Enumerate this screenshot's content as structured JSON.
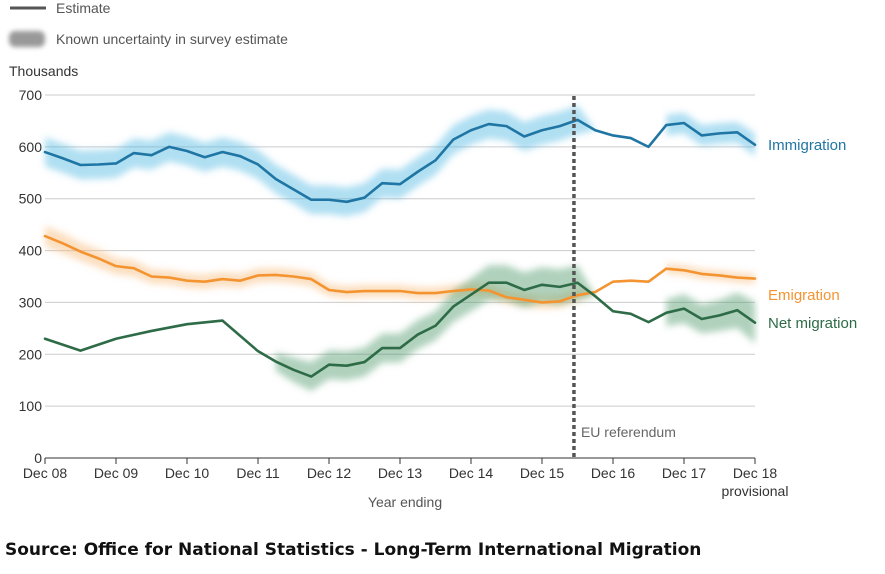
{
  "chart_data": {
    "type": "line",
    "legend": [
      {
        "key": "estimate",
        "label": "Estimate"
      },
      {
        "key": "uncertainty",
        "label": "Known uncertainty in survey estimate"
      }
    ],
    "ylabel": "Thousands",
    "xlabel": "Year ending",
    "ylim": [
      0,
      700
    ],
    "yticks": [
      0,
      100,
      200,
      300,
      400,
      500,
      600,
      700
    ],
    "xlim": [
      0,
      10
    ],
    "xticks": [
      {
        "x": 0,
        "label": "Dec 08"
      },
      {
        "x": 1,
        "label": "Dec 09"
      },
      {
        "x": 2,
        "label": "Dec 10"
      },
      {
        "x": 3,
        "label": "Dec 11"
      },
      {
        "x": 4,
        "label": "Dec 12"
      },
      {
        "x": 5,
        "label": "Dec 13"
      },
      {
        "x": 6,
        "label": "Dec 14"
      },
      {
        "x": 7,
        "label": "Dec 15"
      },
      {
        "x": 8,
        "label": "Dec 16"
      },
      {
        "x": 9,
        "label": "Dec 17"
      },
      {
        "x": 10,
        "label": "Dec 18",
        "sublabel": "provisional"
      }
    ],
    "grid": true,
    "series": [
      {
        "name": "Immigration",
        "color": "#1f75a3",
        "band_color": "#4fb7e3",
        "x": [
          0,
          0.25,
          0.5,
          0.75,
          1,
          1.25,
          1.5,
          1.75,
          2,
          2.25,
          2.5,
          2.75,
          3,
          3.25,
          3.5,
          3.75,
          4,
          4.25,
          4.5,
          4.75,
          5,
          5.25,
          5.5,
          5.75,
          6,
          6.25,
          6.5,
          6.75,
          7,
          7.25,
          7.5,
          7.75,
          8,
          8.25,
          8.5,
          8.75,
          9,
          9.25,
          9.5,
          9.75,
          10
        ],
        "values": [
          590,
          578,
          565,
          566,
          568,
          588,
          584,
          600,
          592,
          580,
          590,
          582,
          566,
          538,
          518,
          498,
          498,
          494,
          502,
          530,
          528,
          552,
          574,
          614,
          632,
          644,
          640,
          620,
          632,
          640,
          652,
          632,
          622,
          617,
          600,
          642,
          646,
          622,
          626,
          628,
          604
        ],
        "uncertainty": [
          28,
          28,
          28,
          28,
          28,
          28,
          28,
          28,
          28,
          28,
          28,
          28,
          28,
          28,
          28,
          28,
          28,
          28,
          28,
          28,
          28,
          28,
          28,
          28,
          28,
          28,
          28,
          28,
          28,
          28,
          28,
          0,
          0,
          0,
          0,
          20,
          20,
          20,
          20,
          20,
          22
        ]
      },
      {
        "name": "Emigration",
        "color": "#f39431",
        "band_color": "#f9b774",
        "x": [
          0,
          0.25,
          0.5,
          0.75,
          1,
          1.25,
          1.5,
          1.75,
          2,
          2.25,
          2.5,
          2.75,
          3,
          3.25,
          3.5,
          3.75,
          4,
          4.25,
          4.5,
          4.75,
          5,
          5.25,
          5.5,
          5.75,
          6,
          6.25,
          6.5,
          6.75,
          7,
          7.25,
          7.5,
          7.75,
          8,
          8.25,
          8.5,
          8.75,
          9,
          9.25,
          9.5,
          9.75,
          10
        ],
        "values": [
          428,
          414,
          398,
          385,
          370,
          366,
          350,
          348,
          342,
          340,
          345,
          342,
          352,
          353,
          350,
          345,
          324,
          320,
          322,
          322,
          322,
          318,
          318,
          322,
          325,
          323,
          310,
          305,
          300,
          302,
          314,
          320,
          340,
          342,
          340,
          365,
          362,
          355,
          352,
          348,
          346
        ],
        "uncertainty": [
          20,
          20,
          18,
          18,
          16,
          16,
          14,
          14,
          14,
          14,
          14,
          14,
          14,
          14,
          14,
          14,
          12,
          12,
          12,
          12,
          12,
          12,
          12,
          12,
          12,
          12,
          12,
          12,
          12,
          12,
          12,
          0,
          0,
          0,
          0,
          10,
          10,
          10,
          10,
          10,
          10
        ]
      },
      {
        "name": "Net migration",
        "color": "#2e6b47",
        "band_color": "#4e9a6b",
        "x": [
          0,
          0.5,
          1,
          1.5,
          2,
          2.5,
          3,
          3.25,
          3.5,
          3.75,
          4,
          4.25,
          4.5,
          4.75,
          5,
          5.25,
          5.5,
          5.75,
          6,
          6.25,
          6.5,
          6.75,
          7,
          7.25,
          7.5,
          7.75,
          8,
          8.25,
          8.5,
          8.75,
          9,
          9.25,
          9.5,
          9.75,
          10
        ],
        "values": [
          230,
          207,
          230,
          245,
          258,
          265,
          206,
          186,
          170,
          157,
          180,
          178,
          185,
          212,
          212,
          238,
          255,
          292,
          315,
          338,
          338,
          324,
          334,
          330,
          338,
          312,
          283,
          278,
          262,
          280,
          288,
          268,
          275,
          285,
          261
        ],
        "uncertainty": [
          0,
          0,
          0,
          0,
          0,
          0,
          0,
          18,
          24,
          28,
          28,
          28,
          28,
          28,
          28,
          28,
          28,
          30,
          32,
          34,
          34,
          34,
          34,
          34,
          34,
          0,
          0,
          0,
          0,
          26,
          28,
          28,
          30,
          34,
          40
        ]
      }
    ],
    "vline": {
      "x": 7.45,
      "label": "EU referendum"
    }
  },
  "source": "Source: Office for National Statistics - Long-Term International Migration"
}
